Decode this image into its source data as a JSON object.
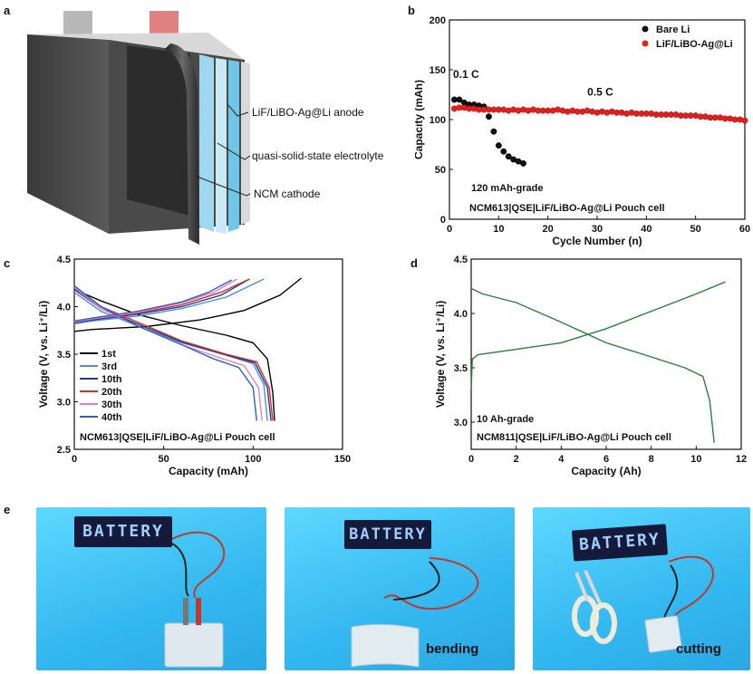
{
  "panels": {
    "a": "a",
    "b": "b",
    "c": "c",
    "d": "d",
    "e": "e"
  },
  "schematic": {
    "labels": [
      "LiF/LiBO-Ag@Li anode",
      "quasi-solid-state electrolyte",
      "NCM cathode"
    ]
  },
  "colors": {
    "bare_li": "#111111",
    "lif_li": "#e02020",
    "c_1st": "#000000",
    "c_3rd": "#4a90d9",
    "c_10th": "#1f3a93",
    "c_20th": "#d0312d",
    "c_30th": "#e080c0",
    "c_40th": "#3060c0",
    "d_curve": "#2e7d3a"
  },
  "chart_data": [
    {
      "id": "b",
      "type": "scatter",
      "xlabel": "Cycle Number (n)",
      "ylabel": "Capacity (mAh)",
      "xlim": [
        0,
        60
      ],
      "ylim": [
        0,
        200
      ],
      "xticks": [
        0,
        10,
        20,
        30,
        40,
        50,
        60
      ],
      "yticks": [
        0,
        50,
        100,
        150,
        200
      ],
      "legend": [
        "Bare Li",
        "LiF/LiBO-Ag@Li"
      ],
      "annotations": [
        "0.1 C",
        "0.5 C",
        "120 mAh-grade",
        "NCM613|QSE|LiF/LiBO-Ag@Li Pouch cell"
      ],
      "series": [
        {
          "name": "Bare Li",
          "x": [
            1,
            2,
            3,
            4,
            5,
            6,
            7,
            8,
            9,
            10,
            11,
            12,
            13,
            14,
            15
          ],
          "y": [
            120,
            120,
            117,
            115,
            115,
            114,
            113,
            103,
            88,
            74,
            68,
            63,
            60,
            58,
            56
          ]
        },
        {
          "name": "LiF/LiBO-Ag@Li",
          "x": [
            1,
            2,
            3,
            4,
            5,
            6,
            7,
            8,
            9,
            10,
            11,
            12,
            13,
            14,
            15,
            16,
            17,
            18,
            19,
            20,
            21,
            22,
            23,
            24,
            25,
            26,
            27,
            28,
            29,
            30,
            31,
            32,
            33,
            34,
            35,
            36,
            37,
            38,
            39,
            40,
            41,
            42,
            43,
            44,
            45,
            46,
            47,
            48,
            49,
            50,
            51,
            52,
            53,
            54,
            55,
            56,
            57,
            58,
            59,
            60
          ],
          "y": [
            111,
            112,
            112,
            111,
            111,
            110,
            110,
            110,
            110,
            110,
            110,
            109,
            110,
            109,
            110,
            109,
            110,
            109,
            109,
            109,
            109,
            110,
            109,
            108,
            109,
            108,
            108,
            109,
            108,
            107,
            108,
            107,
            108,
            107,
            107,
            106,
            107,
            106,
            106,
            106,
            106,
            105,
            105,
            105,
            105,
            105,
            104,
            104,
            104,
            104,
            103,
            103,
            102,
            102,
            102,
            101,
            101,
            100,
            100,
            99
          ]
        }
      ]
    },
    {
      "id": "c",
      "type": "line",
      "xlabel": "Capacity (mAh)",
      "ylabel": "Voltage (V, vs. Li⁺/Li)",
      "xlim": [
        0,
        150
      ],
      "ylim": [
        2.5,
        4.5
      ],
      "xticks": [
        0,
        50,
        100,
        150
      ],
      "yticks": [
        2.5,
        3.0,
        3.5,
        4.0,
        4.5
      ],
      "annotation": "NCM613|QSE|LiF/LiBO-Ag@Li Pouch cell",
      "series": [
        {
          "name": "1st",
          "charge": [
            [
              0,
              3.74
            ],
            [
              10,
              3.76
            ],
            [
              40,
              3.79
            ],
            [
              70,
              3.86
            ],
            [
              95,
              3.96
            ],
            [
              115,
              4.12
            ],
            [
              127,
              4.3
            ]
          ],
          "discharge": [
            [
              0,
              4.18
            ],
            [
              15,
              4.06
            ],
            [
              35,
              3.92
            ],
            [
              60,
              3.8
            ],
            [
              85,
              3.7
            ],
            [
              100,
              3.62
            ],
            [
              108,
              3.45
            ],
            [
              111,
              3.1
            ],
            [
              112,
              2.8
            ]
          ]
        },
        {
          "name": "3rd",
          "charge": [
            [
              0,
              3.82
            ],
            [
              10,
              3.85
            ],
            [
              35,
              3.9
            ],
            [
              60,
              3.98
            ],
            [
              85,
              4.1
            ],
            [
              106,
              4.29
            ]
          ],
          "discharge": [
            [
              0,
              4.15
            ],
            [
              15,
              3.95
            ],
            [
              35,
              3.8
            ],
            [
              60,
              3.62
            ],
            [
              85,
              3.49
            ],
            [
              100,
              3.4
            ],
            [
              106,
              3.18
            ],
            [
              108,
              2.8
            ]
          ]
        },
        {
          "name": "10th",
          "charge": [
            [
              0,
              3.83
            ],
            [
              10,
              3.86
            ],
            [
              35,
              3.92
            ],
            [
              60,
              4.0
            ],
            [
              82,
              4.12
            ],
            [
              98,
              4.29
            ]
          ],
          "discharge": [
            [
              0,
              4.18
            ],
            [
              15,
              3.98
            ],
            [
              35,
              3.82
            ],
            [
              60,
              3.63
            ],
            [
              85,
              3.49
            ],
            [
              101,
              3.41
            ],
            [
              108,
              3.15
            ],
            [
              110,
              2.8
            ]
          ]
        },
        {
          "name": "20th",
          "charge": [
            [
              0,
              3.84
            ],
            [
              10,
              3.87
            ],
            [
              35,
              3.93
            ],
            [
              60,
              4.02
            ],
            [
              82,
              4.15
            ],
            [
              98,
              4.29
            ]
          ],
          "discharge": [
            [
              0,
              4.2
            ],
            [
              15,
              4.0
            ],
            [
              35,
              3.84
            ],
            [
              60,
              3.64
            ],
            [
              85,
              3.5
            ],
            [
              102,
              3.42
            ],
            [
              109,
              3.15
            ],
            [
              111,
              2.8
            ]
          ]
        },
        {
          "name": "30th",
          "charge": [
            [
              0,
              3.84
            ],
            [
              10,
              3.87
            ],
            [
              35,
              3.94
            ],
            [
              60,
              4.04
            ],
            [
              78,
              4.15
            ],
            [
              91,
              4.29
            ]
          ],
          "discharge": [
            [
              0,
              4.2
            ],
            [
              15,
              3.98
            ],
            [
              35,
              3.8
            ],
            [
              60,
              3.6
            ],
            [
              80,
              3.47
            ],
            [
              95,
              3.38
            ],
            [
              103,
              3.15
            ],
            [
              105,
              2.8
            ]
          ]
        },
        {
          "name": "40th",
          "charge": [
            [
              0,
              3.85
            ],
            [
              10,
              3.88
            ],
            [
              35,
              3.95
            ],
            [
              60,
              4.05
            ],
            [
              75,
              4.15
            ],
            [
              88,
              4.28
            ]
          ],
          "discharge": [
            [
              0,
              4.22
            ],
            [
              15,
              4.0
            ],
            [
              35,
              3.8
            ],
            [
              60,
              3.6
            ],
            [
              78,
              3.45
            ],
            [
              92,
              3.36
            ],
            [
              100,
              3.15
            ],
            [
              102,
              2.8
            ]
          ]
        }
      ]
    },
    {
      "id": "d",
      "type": "line",
      "xlabel": "Capacity (Ah)",
      "ylabel": "Voltage (V, vs. Li⁺/Li)",
      "xlim": [
        0,
        12
      ],
      "ylim": [
        2.75,
        4.5
      ],
      "xticks": [
        0,
        2,
        4,
        6,
        8,
        10,
        12
      ],
      "yticks": [
        3.0,
        3.5,
        4.0,
        4.5
      ],
      "annotations": [
        "10 Ah-grade",
        "NCM811|QSE|LiF/LiBO-Ag@Li Pouch cell"
      ],
      "series": [
        {
          "name": "charge",
          "points": [
            [
              0,
              3.3
            ],
            [
              0.05,
              3.58
            ],
            [
              0.3,
              3.62
            ],
            [
              2,
              3.67
            ],
            [
              4,
              3.73
            ],
            [
              6,
              3.86
            ],
            [
              8,
              4.02
            ],
            [
              10,
              4.18
            ],
            [
              11.3,
              4.29
            ]
          ]
        },
        {
          "name": "discharge",
          "points": [
            [
              0,
              4.23
            ],
            [
              0.5,
              4.18
            ],
            [
              2,
              4.1
            ],
            [
              4,
              3.92
            ],
            [
              6,
              3.73
            ],
            [
              8,
              3.6
            ],
            [
              9.5,
              3.5
            ],
            [
              10.3,
              3.42
            ],
            [
              10.6,
              3.2
            ],
            [
              10.8,
              2.81
            ]
          ]
        }
      ]
    }
  ],
  "photos": [
    {
      "display": "BATTERY",
      "caption": ""
    },
    {
      "display": "BATTERY",
      "caption": "bending"
    },
    {
      "display": "BATTERY",
      "caption": "cutting"
    }
  ]
}
